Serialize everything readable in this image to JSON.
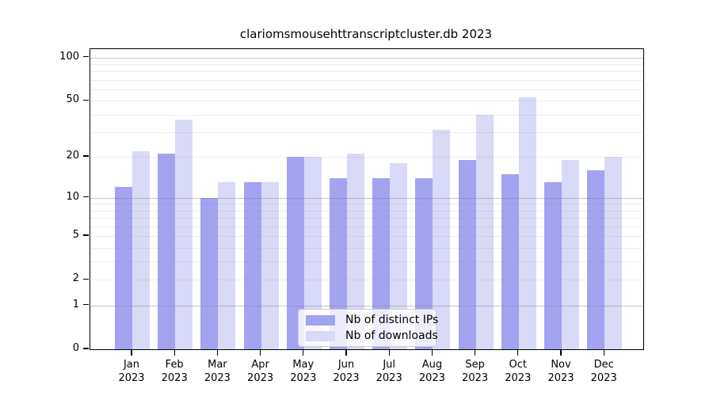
{
  "chart_data": {
    "type": "bar",
    "title": "clariomsmousehttranscriptcluster.db 2023",
    "categories": [
      "Jan",
      "Feb",
      "Mar",
      "Apr",
      "May",
      "Jun",
      "Jul",
      "Aug",
      "Sep",
      "Oct",
      "Nov",
      "Dec"
    ],
    "year": "2023",
    "series": [
      {
        "name": "Nb of distinct IPs",
        "color": "#a3a3f0",
        "values": [
          12,
          21,
          10,
          13,
          20,
          14,
          14,
          14,
          19,
          15,
          13,
          16
        ]
      },
      {
        "name": "Nb of downloads",
        "color": "#d9d9f8",
        "values": [
          22,
          37,
          13,
          13,
          20,
          21,
          18,
          31,
          40,
          53,
          19,
          20
        ]
      }
    ],
    "xlabel": "",
    "ylabel": "",
    "y_scale": "log1p",
    "ylim": [
      0,
      115
    ],
    "y_tick_labels": [
      "100",
      "50",
      "20",
      "10",
      "5",
      "2",
      "1",
      "0"
    ],
    "y_tick_values": [
      100,
      50,
      20,
      10,
      5,
      2,
      1,
      0
    ],
    "y_major_gridlines": [
      1,
      10,
      100
    ],
    "y_minor_gridlines": [
      2,
      3,
      4,
      5,
      6,
      7,
      8,
      9,
      20,
      30,
      40,
      50,
      60,
      70,
      80,
      90
    ],
    "grid": "on, drawn over bars",
    "legend_position": "lower center"
  },
  "legend": {
    "items": [
      {
        "label": "Nb of distinct IPs",
        "color": "#a3a3f0"
      },
      {
        "label": "Nb of downloads",
        "color": "#d9d9f8"
      }
    ]
  }
}
